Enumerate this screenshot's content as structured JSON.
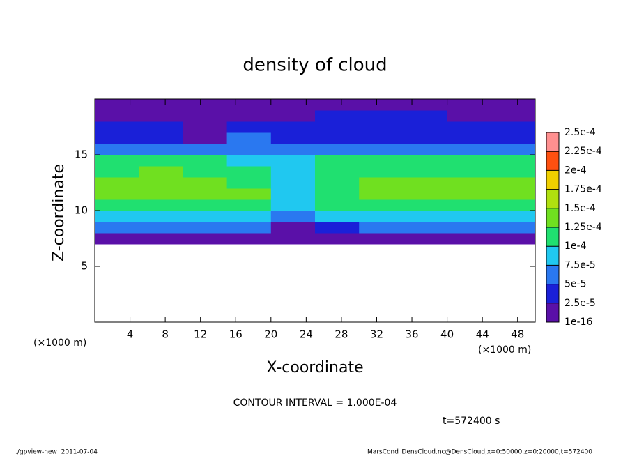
{
  "chart_data": {
    "type": "heatmap",
    "title": "density of cloud",
    "x_label": "X-coordinate",
    "y_label": "Z-coordinate",
    "x_unit": "(×1000 m)",
    "y_unit": "(×1000 m)",
    "contour_note": "CONTOUR INTERVAL = 1.000E-04",
    "time_note": "t=572400 s",
    "footer_left": "./gpview-new  2011-07-04",
    "footer_right": "MarsCond_DensCloud.nc@DensCloud,x=0:50000,z=0:20000,t=572400",
    "xlim": [
      0,
      50
    ],
    "ylim": [
      0,
      20
    ],
    "xticks": [
      4,
      8,
      12,
      16,
      20,
      24,
      28,
      32,
      36,
      40,
      44,
      48
    ],
    "yticks": [
      5,
      10,
      15
    ],
    "x": [
      2.5,
      7.5,
      12.5,
      17.5,
      22.5,
      27.5,
      32.5,
      37.5,
      42.5,
      47.5
    ],
    "y": [
      7.5,
      8.5,
      9.5,
      10.5,
      11.5,
      12.5,
      13.5,
      14.5,
      15.5,
      16.5,
      17.5,
      18.5,
      19.5
    ],
    "z": [
      [
        1.5e-05,
        1.5e-05,
        1.5e-05,
        1.5e-05,
        1.5e-05,
        1.5e-05,
        1.5e-05,
        1.5e-05,
        1.5e-05,
        1.5e-05
      ],
      [
        5e-05,
        5e-05,
        5e-05,
        5e-05,
        2e-05,
        4.5e-05,
        5e-05,
        5e-05,
        5e-05,
        5e-05
      ],
      [
        8e-05,
        8e-05,
        8e-05,
        8e-05,
        6e-05,
        8e-05,
        8e-05,
        8e-05,
        8e-05,
        8e-05
      ],
      [
        0.000105,
        0.000105,
        0.000105,
        0.000105,
        8e-05,
        0.0001,
        0.000105,
        0.000105,
        0.000105,
        0.000105
      ],
      [
        0.000125,
        0.000125,
        0.000125,
        0.000125,
        9e-05,
        0.00012,
        0.000125,
        0.000125,
        0.000125,
        0.000125
      ],
      [
        0.00013,
        0.00013,
        0.00013,
        0.00012,
        8.5e-05,
        0.00012,
        0.00013,
        0.00013,
        0.00013,
        0.00013
      ],
      [
        0.00012,
        0.000125,
        0.00012,
        0.0001,
        8e-05,
        0.000115,
        0.00012,
        0.00012,
        0.00012,
        0.00012
      ],
      [
        0.000105,
        0.000105,
        0.0001,
        8e-05,
        8.5e-05,
        0.000105,
        0.000105,
        0.000105,
        0.000105,
        0.000105
      ],
      [
        6e-05,
        6e-05,
        5e-05,
        6e-05,
        6.5e-05,
        6e-05,
        6e-05,
        6e-05,
        6e-05,
        6e-05
      ],
      [
        3.5e-05,
        3.5e-05,
        1.5e-05,
        5e-05,
        4e-05,
        3.5e-05,
        3.5e-05,
        3.5e-05,
        3.5e-05,
        3.5e-05
      ],
      [
        3e-05,
        3e-05,
        2e-05,
        4e-05,
        3e-05,
        3e-05,
        3e-05,
        3e-05,
        3e-05,
        2.8e-05
      ],
      [
        2e-05,
        1.8e-05,
        1.5e-05,
        2.2e-05,
        2e-05,
        2.8e-05,
        3e-05,
        2.5e-05,
        2e-05,
        1.8e-05
      ],
      [
        1e-05,
        1e-05,
        1.2e-05,
        1e-05,
        1.5e-05,
        1.5e-05,
        1.5e-05,
        1.2e-05,
        1e-05,
        1e-05
      ]
    ],
    "colorbar": {
      "levels": [
        1e-16,
        {
          "value": 2.5e-05,
          "label": "2.5e-5"
        },
        {
          "value": 5e-05,
          "label": "5e-5"
        },
        {
          "value": 7.5e-05,
          "label": "7.5e-5"
        },
        {
          "value": 0.0001,
          "label": "1e-4"
        },
        {
          "value": 0.000125,
          "label": "1.25e-4"
        },
        {
          "value": 0.00015,
          "label": "1.5e-4"
        },
        {
          "value": 0.000175,
          "label": "1.75e-4"
        },
        {
          "value": 0.0002,
          "label": "2e-4"
        },
        {
          "value": 0.000225,
          "label": "2.25e-4"
        },
        {
          "value": 0.00025,
          "label": "2.5e-4"
        }
      ],
      "colors": [
        "#5a10a8",
        "#1a20d8",
        "#2a78f0",
        "#20c8f0",
        "#20e070",
        "#70e020",
        "#b0e010",
        "#f0d000",
        "#ff5010",
        "#ff9090"
      ]
    }
  }
}
